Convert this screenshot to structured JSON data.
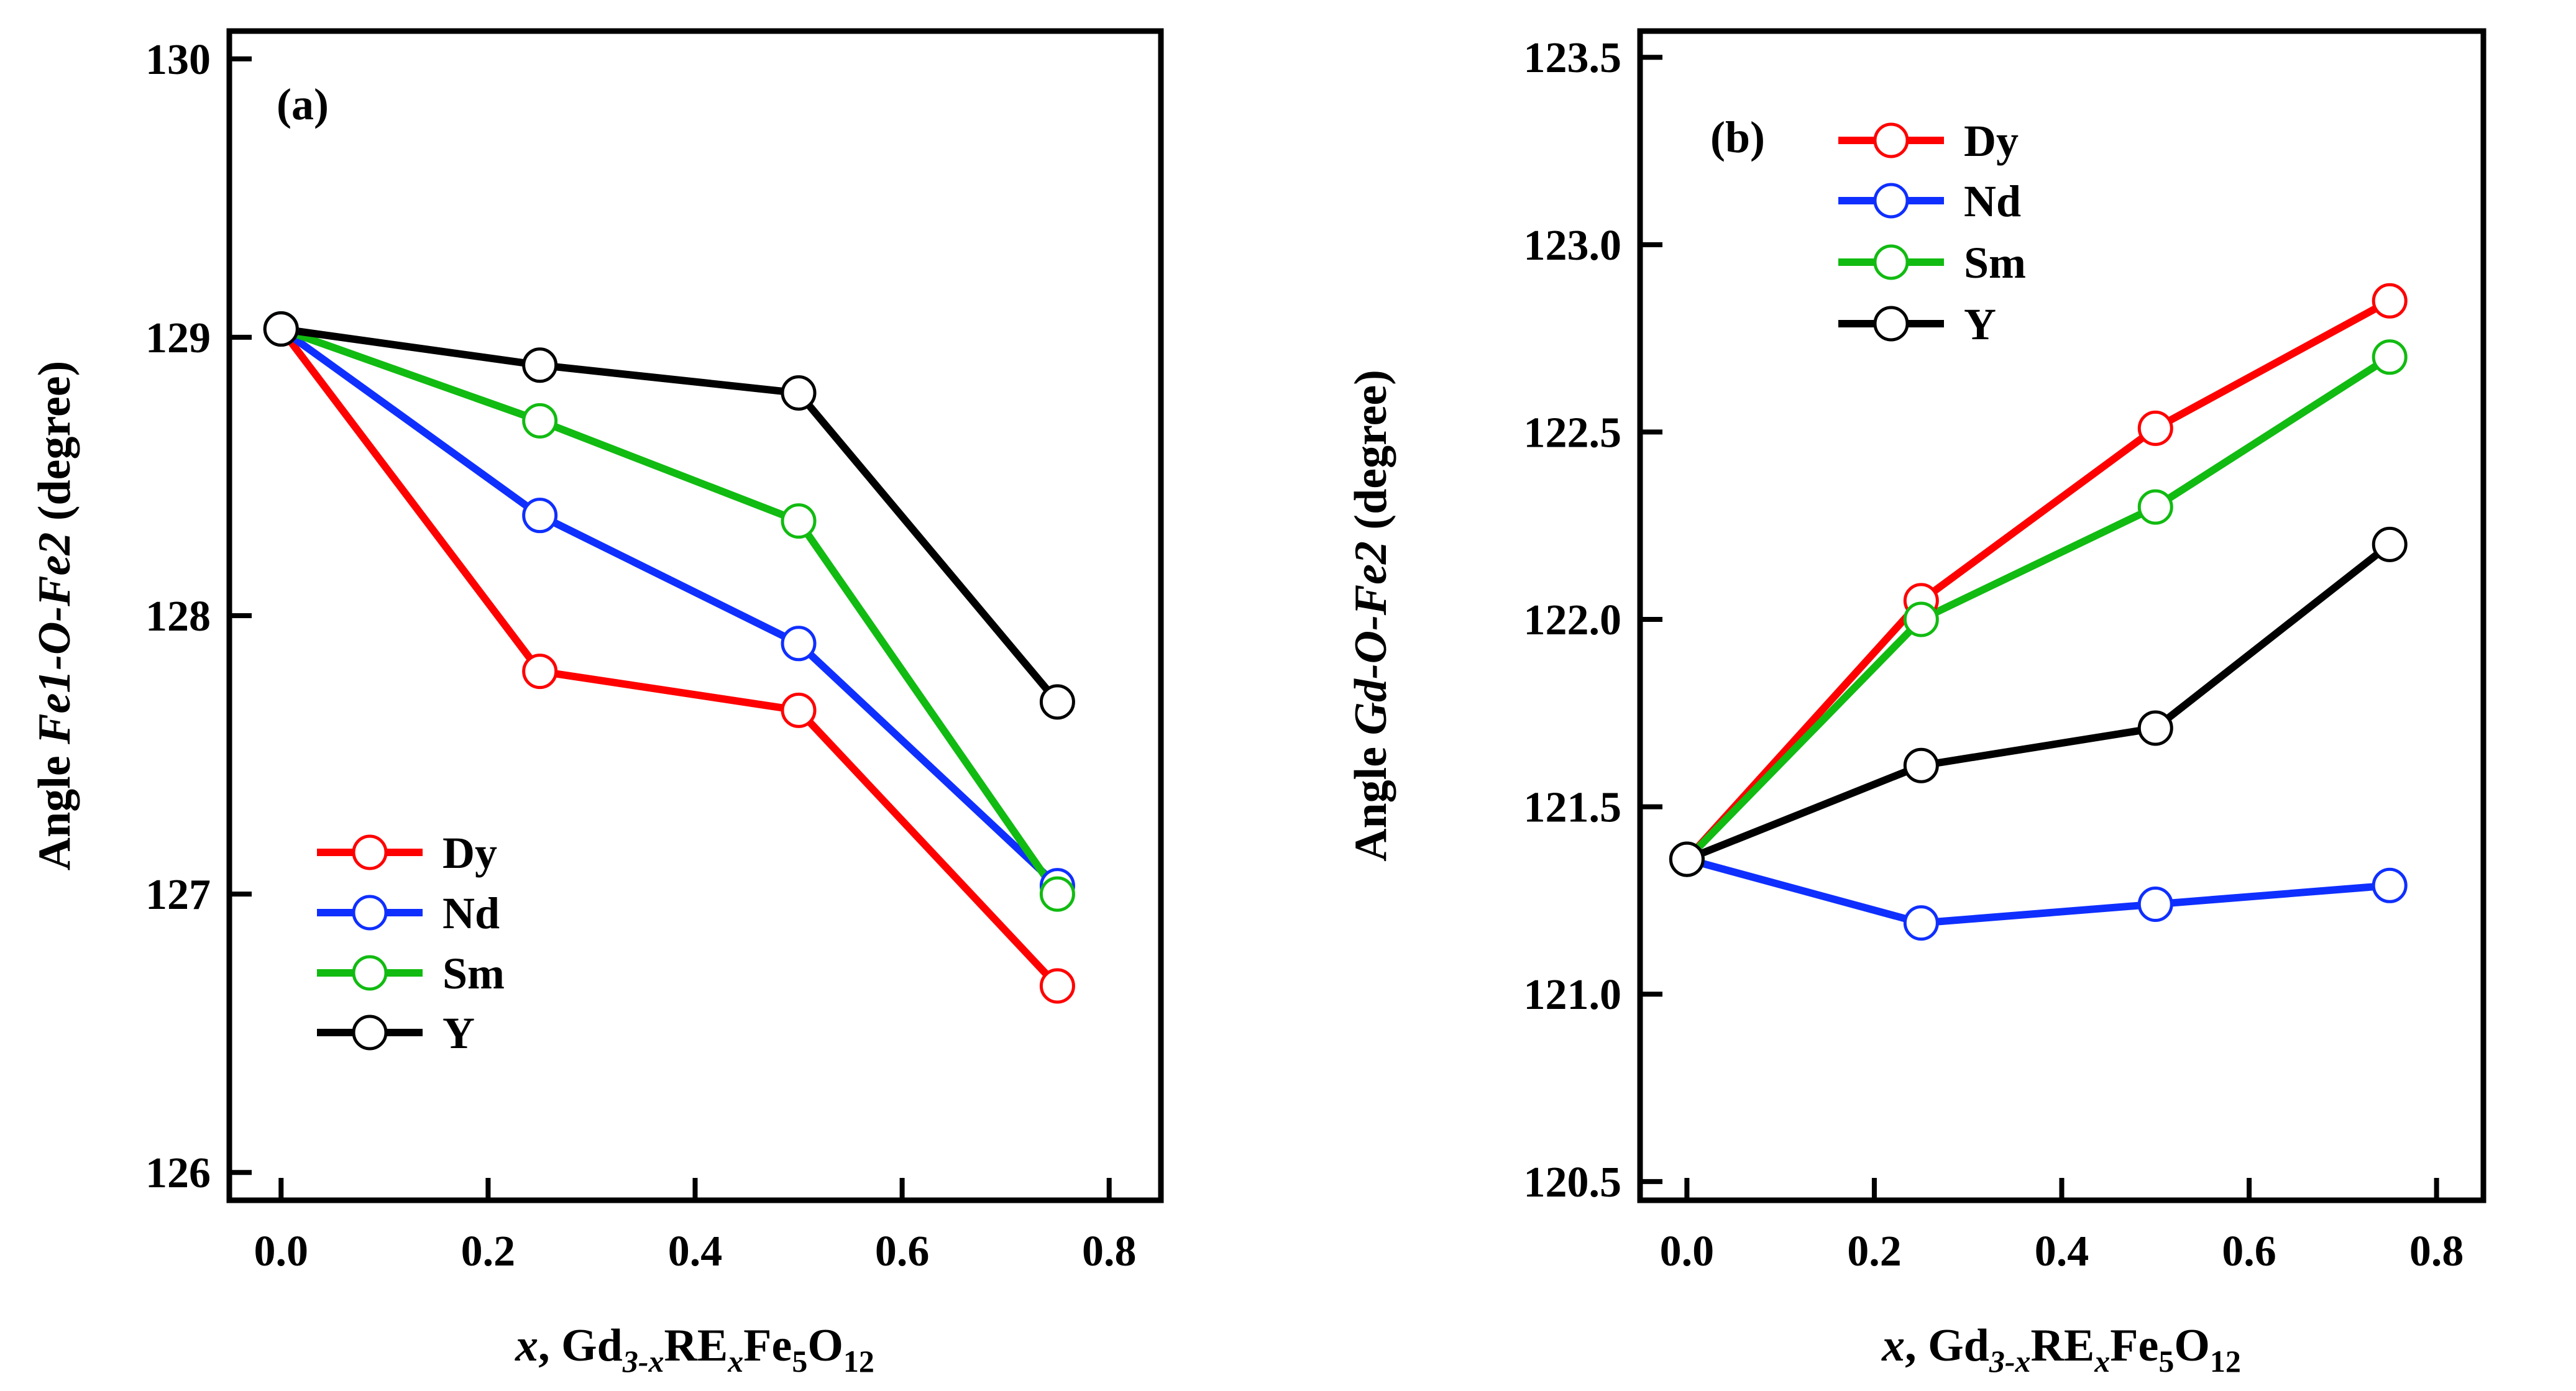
{
  "chart_data": [
    {
      "panel_label": "(a)",
      "type": "line",
      "x": [
        0.0,
        0.25,
        0.5,
        0.75
      ],
      "xlim": [
        -0.05,
        0.85
      ],
      "ylim": [
        125.9,
        130.1
      ],
      "xticks": [
        0.0,
        0.2,
        0.4,
        0.6,
        0.8
      ],
      "xtick_labels": [
        "0.0",
        "0.2",
        "0.4",
        "0.6",
        "0.8"
      ],
      "yticks": [
        126,
        127,
        128,
        129,
        130
      ],
      "ytick_labels": [
        "126",
        "127",
        "128",
        "129",
        "130"
      ],
      "ylabel": {
        "pre": "Angle ",
        "italic": "Fe1-O-Fe2",
        "post": " (degree)"
      },
      "xlabel": {
        "x_var": "x",
        "comma": ",",
        "gd": "Gd",
        "gd_sub": "3-x",
        "re": "RE",
        "re_sub": "x",
        "fe": "Fe",
        "fe_sub": "5",
        "o": "O",
        "o_sub": "12"
      },
      "legend_position": "bottom-left",
      "series": [
        {
          "name": "Dy",
          "color": "#ff0000",
          "values": [
            129.03,
            127.8,
            127.66,
            126.67
          ]
        },
        {
          "name": "Nd",
          "color": "#0f2fff",
          "values": [
            129.03,
            128.36,
            127.9,
            127.03
          ]
        },
        {
          "name": "Sm",
          "color": "#11bb11",
          "values": [
            129.03,
            128.7,
            128.34,
            127.0
          ]
        },
        {
          "name": "Y",
          "color": "#000000",
          "values": [
            129.03,
            128.9,
            128.8,
            127.69
          ]
        }
      ]
    },
    {
      "panel_label": "(b)",
      "type": "line",
      "x": [
        0.0,
        0.25,
        0.5,
        0.75
      ],
      "xlim": [
        -0.05,
        0.85
      ],
      "ylim": [
        120.45,
        123.57
      ],
      "xticks": [
        0.0,
        0.2,
        0.4,
        0.6,
        0.8
      ],
      "xtick_labels": [
        "0.0",
        "0.2",
        "0.4",
        "0.6",
        "0.8"
      ],
      "yticks": [
        120.5,
        121.0,
        121.5,
        122.0,
        122.5,
        123.0,
        123.5
      ],
      "ytick_labels": [
        "120.5",
        "121.0",
        "121.5",
        "122.0",
        "122.5",
        "123.0",
        "123.5"
      ],
      "ylabel": {
        "pre": "Angle ",
        "italic": "Gd-O-Fe2",
        "post": " (degree)"
      },
      "xlabel": {
        "x_var": "x",
        "comma": ",",
        "gd": "Gd",
        "gd_sub": "3-x",
        "re": "RE",
        "re_sub": "x",
        "fe": "Fe",
        "fe_sub": "5",
        "o": "O",
        "o_sub": "12"
      },
      "legend_position": "top-left",
      "series": [
        {
          "name": "Dy",
          "color": "#ff0000",
          "values": [
            121.36,
            122.05,
            122.51,
            122.85
          ]
        },
        {
          "name": "Nd",
          "color": "#0f2fff",
          "values": [
            121.36,
            121.19,
            121.24,
            121.29
          ]
        },
        {
          "name": "Sm",
          "color": "#11bb11",
          "values": [
            121.36,
            122.0,
            122.3,
            122.7
          ]
        },
        {
          "name": "Y",
          "color": "#000000",
          "values": [
            121.36,
            121.61,
            121.71,
            122.2
          ]
        }
      ]
    }
  ]
}
